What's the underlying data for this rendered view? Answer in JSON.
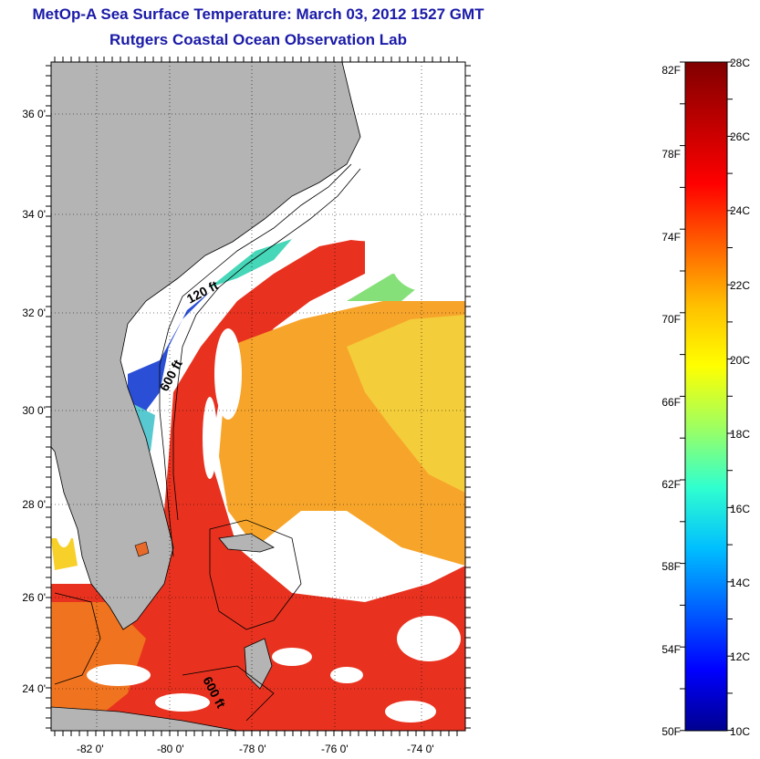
{
  "header": {
    "title_line1": "MetOp-A Sea Surface Temperature:  March 03, 2012 1527 GMT",
    "title_line2": "Rutgers Coastal Ocean Observation Lab"
  },
  "map": {
    "lat_labels": [
      "36 0'",
      "34 0'",
      "32 0'",
      "30 0'",
      "28 0'",
      "26 0'",
      "24 0'"
    ],
    "lon_labels": [
      "-82 0'",
      "-80 0'",
      "-78 0'",
      "-76 0'",
      "-74 0'"
    ],
    "depth_labels": [
      "120 ft",
      "600 ft",
      "600 ft"
    ],
    "colors": {
      "land": "#b4b4b4",
      "cloud": "#ffffff",
      "border": "#000000",
      "warm": "#e8281e",
      "mid": "#f7a21b"
    }
  },
  "colorbar": {
    "fahrenheit_labels": [
      "82F",
      "78F",
      "74F",
      "70F",
      "66F",
      "62F",
      "58F",
      "54F",
      "50F"
    ],
    "celsius_labels": [
      "28C",
      "26C",
      "24C",
      "22C",
      "20C",
      "18C",
      "16C",
      "14C",
      "12C",
      "10C"
    ],
    "colors": [
      "#00008f",
      "#0000ff",
      "#0060ff",
      "#00bfff",
      "#30ffcf",
      "#9fff60",
      "#ffff00",
      "#ffbf00",
      "#ff6000",
      "#ff0000",
      "#bf0000",
      "#800000"
    ]
  }
}
